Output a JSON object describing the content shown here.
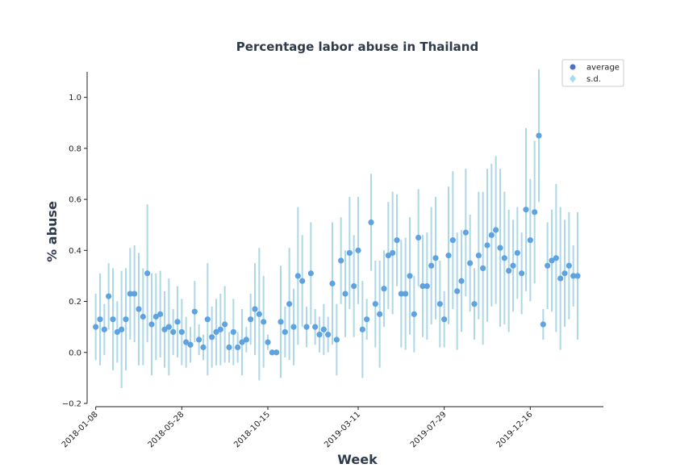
{
  "chart_data": {
    "type": "scatter",
    "title": "Percentage labor abuse in Thailand",
    "xlabel": "Week",
    "ylabel": "% abuse",
    "ylim": [
      -0.2,
      1.1
    ],
    "yticks": [
      -0.2,
      0.0,
      0.2,
      0.4,
      0.6,
      0.8,
      1.0
    ],
    "yticklabels": [
      "−0.2",
      "0.0",
      "0.2",
      "0.4",
      "0.6",
      "0.8",
      "1.0"
    ],
    "xlim": [
      "2017-12-25",
      "2020-04-13"
    ],
    "xticks": [
      "2018-01-08",
      "2018-05-28",
      "2018-10-15",
      "2019-03-11",
      "2019-07-29",
      "2019-12-16"
    ],
    "grid": false,
    "legend": {
      "position": "top-right",
      "entries": [
        {
          "label": "average",
          "color": "#4d6fc4",
          "marker": "circle"
        },
        {
          "label": "s.d.",
          "color": "#a6dcef",
          "marker": "diamond"
        }
      ]
    },
    "colors": {
      "point": "#5fa2e0",
      "errorbar": "#add8e6",
      "title": "#2f3a4a",
      "axis_label": "#2f3a4a"
    },
    "series": [
      {
        "name": "average",
        "x_start": "2018-01-08",
        "x_step_days": 7,
        "values": [
          0.1,
          0.13,
          0.09,
          0.22,
          0.13,
          0.08,
          0.09,
          0.13,
          0.23,
          0.23,
          0.17,
          0.14,
          0.31,
          0.11,
          0.14,
          0.15,
          0.09,
          0.1,
          0.08,
          0.12,
          0.08,
          0.04,
          0.03,
          0.16,
          0.05,
          0.02,
          0.13,
          0.06,
          0.08,
          0.09,
          0.11,
          0.02,
          0.08,
          0.02,
          0.04,
          0.05,
          0.13,
          0.17,
          0.15,
          0.12,
          0.04,
          0.0,
          0.0,
          0.12,
          0.08,
          0.19,
          0.1,
          0.3,
          0.28,
          0.1,
          0.31,
          0.1,
          0.07,
          0.09,
          0.07,
          0.27,
          0.05,
          0.36,
          0.23,
          0.39,
          0.26,
          0.4,
          0.09,
          0.13,
          0.51,
          0.19,
          0.15,
          0.25,
          0.38,
          0.39,
          0.44,
          0.23,
          0.23,
          0.3,
          0.15,
          0.45,
          0.26,
          0.26,
          0.34,
          0.37,
          0.19,
          0.13,
          0.38,
          0.44,
          0.24,
          0.28,
          0.47,
          0.35,
          0.19,
          0.38,
          0.33,
          0.42,
          0.46,
          0.48,
          0.41,
          0.37,
          0.32,
          0.34,
          0.39,
          0.31,
          0.56,
          0.44,
          0.55,
          0.85,
          0.11,
          0.34,
          0.36,
          0.37,
          0.29,
          0.31,
          0.34,
          0.3,
          0.3
        ]
      },
      {
        "name": "s.d.",
        "values": [
          0.13,
          0.18,
          0.1,
          0.13,
          0.2,
          0.12,
          0.23,
          0.2,
          0.18,
          0.19,
          0.22,
          0.19,
          0.27,
          0.2,
          0.17,
          0.17,
          0.15,
          0.19,
          0.09,
          0.14,
          0.13,
          0.1,
          0.07,
          0.12,
          0.06,
          0.05,
          0.22,
          0.12,
          0.13,
          0.14,
          0.15,
          0.06,
          0.13,
          0.06,
          0.13,
          0.05,
          0.1,
          0.18,
          0.26,
          0.18,
          0.03,
          0.0,
          0.0,
          0.22,
          0.1,
          0.22,
          0.15,
          0.27,
          0.18,
          0.08,
          0.2,
          0.07,
          0.07,
          0.1,
          0.07,
          0.24,
          0.14,
          0.17,
          0.17,
          0.22,
          0.2,
          0.21,
          0.19,
          0.08,
          0.19,
          0.17,
          0.21,
          0.15,
          0.21,
          0.24,
          0.18,
          0.21,
          0.22,
          0.23,
          0.15,
          0.19,
          0.2,
          0.21,
          0.23,
          0.24,
          0.17,
          0.11,
          0.27,
          0.27,
          0.23,
          0.2,
          0.25,
          0.19,
          0.14,
          0.25,
          0.3,
          0.3,
          0.28,
          0.29,
          0.31,
          0.26,
          0.24,
          0.18,
          0.18,
          0.16,
          0.32,
          0.24,
          0.28,
          0.26,
          0.06,
          0.17,
          0.2,
          0.29,
          0.28,
          0.21,
          0.21,
          0.12,
          0.25
        ]
      }
    ]
  }
}
